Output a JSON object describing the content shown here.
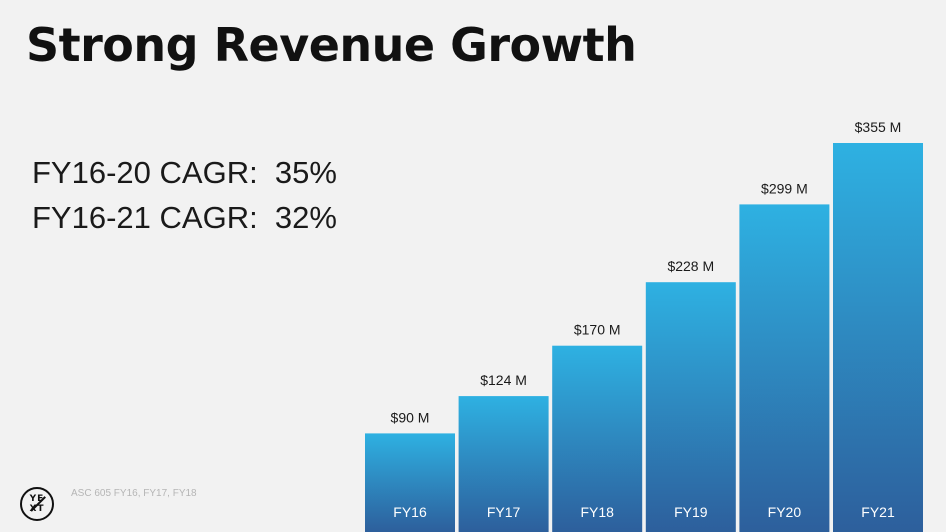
{
  "slide": {
    "title": "Strong Revenue Growth",
    "cagr_lines": [
      "FY16-20 CAGR:  35%",
      "FY16-21 CAGR:  32%"
    ],
    "footnote": "ASC 605 FY16, FY17, FY18",
    "logo": {
      "top": "YE",
      "bottom": "XT"
    }
  },
  "chart_data": {
    "type": "bar",
    "categories": [
      "FY16",
      "FY17",
      "FY18",
      "FY19",
      "FY20",
      "FY21"
    ],
    "values": [
      90,
      124,
      170,
      228,
      299,
      355
    ],
    "data_labels": [
      "$90 M",
      "$124 M",
      "$170 M",
      "$228 M",
      "$299 M",
      "$355 M"
    ],
    "title": "",
    "xlabel": "",
    "ylabel": "",
    "ylim": [
      0,
      355
    ],
    "grid": false,
    "legend": "none",
    "colors": {
      "bar_top": "#2eb1e2",
      "bar_bottom": "#2d5f9c",
      "category_label": "#ffffff",
      "data_label": "#1a1a1a"
    }
  }
}
